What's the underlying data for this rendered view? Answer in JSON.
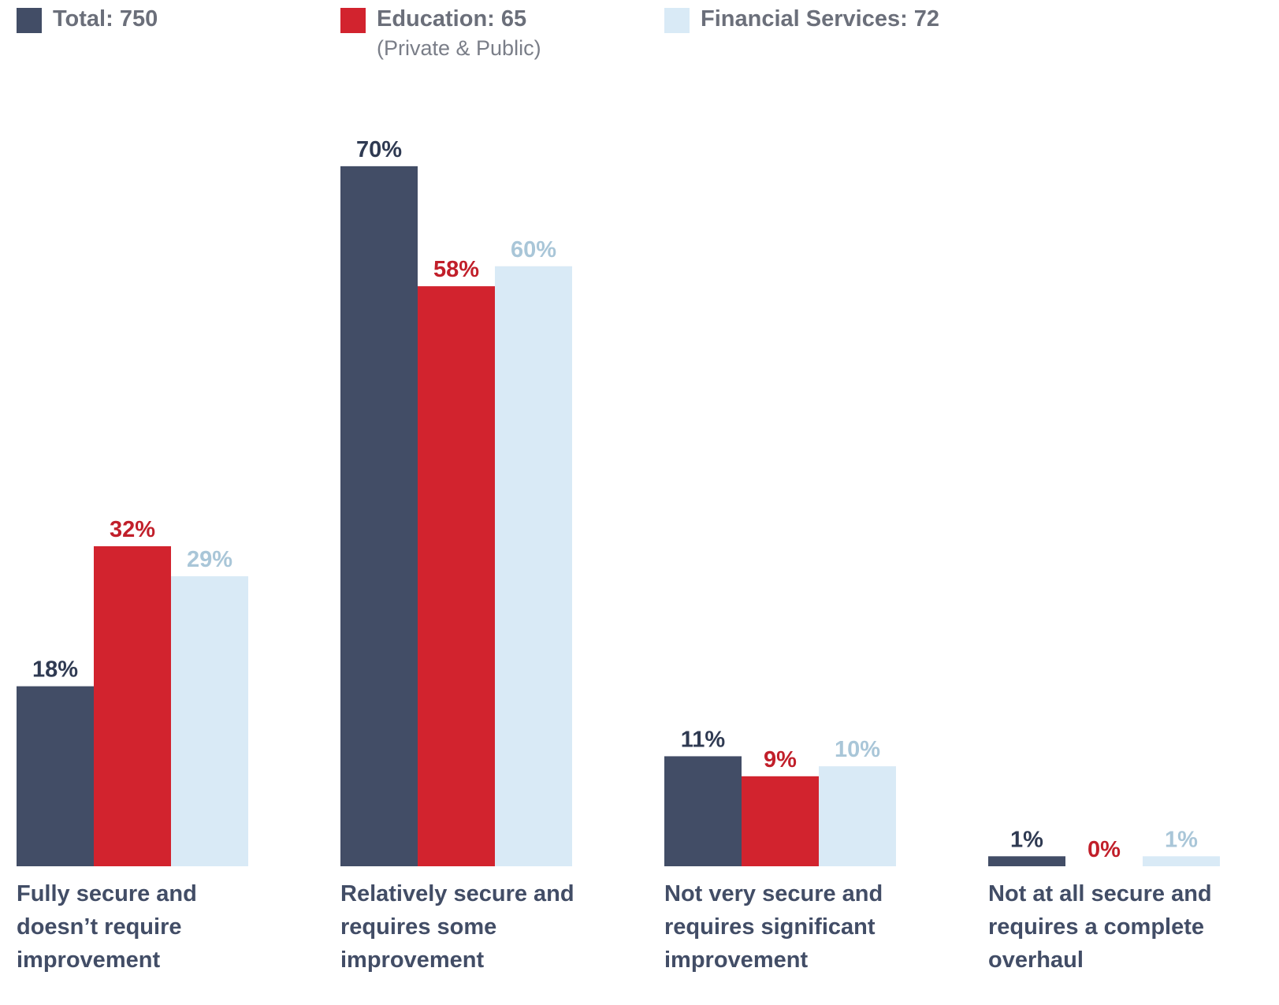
{
  "chart_data": {
    "type": "bar",
    "categories": [
      "Fully secure and doesn’t require improvement",
      "Relatively secure and requires some improvement",
      "Not very secure and requires significant improvement",
      "Not at all secure and requires a complete overhaul"
    ],
    "series": [
      {
        "name": "Total: 750",
        "color": "#424d66",
        "label_color": "#2f3a52",
        "values": [
          18,
          70,
          11,
          1
        ],
        "value_labels": [
          "18%",
          "70%",
          "11%",
          "1%"
        ]
      },
      {
        "name": "Education: 65",
        "note": "(Private & Public)",
        "color": "#d2232e",
        "label_color": "#c11f2a",
        "values": [
          32,
          58,
          9,
          0
        ],
        "value_labels": [
          "32%",
          "58%",
          "9%",
          "0%"
        ]
      },
      {
        "name": "Financial Services: 72",
        "color": "#d9eaf6",
        "label_color": "#a9c6d8",
        "values": [
          29,
          60,
          10,
          1
        ],
        "value_labels": [
          "29%",
          "60%",
          "10%",
          "1%"
        ]
      }
    ],
    "ylim": [
      0,
      80
    ]
  }
}
